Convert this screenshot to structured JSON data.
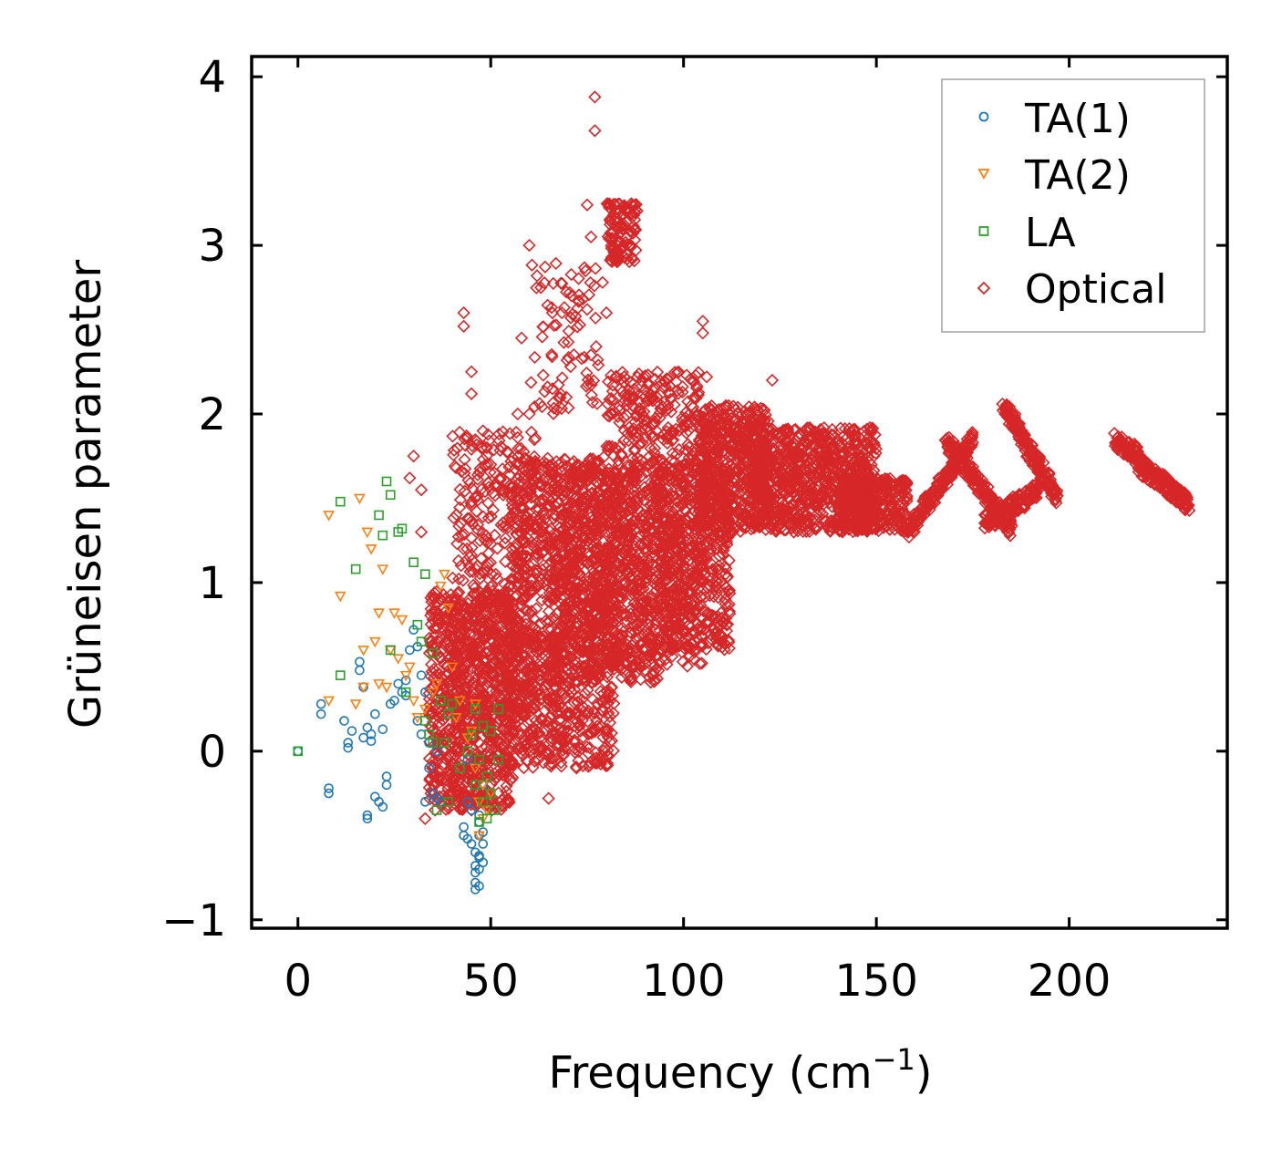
{
  "chart_data": {
    "type": "scatter",
    "title": "",
    "xlabel": "Frequency (cm",
    "xlabel_sup": "−1",
    "xlabel_close": ")",
    "ylabel": "Grüneisen parameter",
    "xlim": [
      -12,
      241
    ],
    "ylim": [
      -1.05,
      4.12
    ],
    "xticks": [
      0,
      50,
      100,
      150,
      200
    ],
    "xtick_labels": [
      "0",
      "50",
      "100",
      "150",
      "200"
    ],
    "yticks": [
      -1,
      0,
      1,
      2,
      3,
      4
    ],
    "ytick_labels": [
      "−1",
      "0",
      "1",
      "2",
      "3",
      "4"
    ],
    "grid": false,
    "legend_position": "top-right",
    "series": [
      {
        "name": "TA(1)",
        "marker": "circle",
        "color": "#1f77b4",
        "x": [
          0,
          6,
          6,
          8,
          8,
          12,
          13,
          13,
          14,
          16,
          16,
          17,
          17,
          18,
          18,
          18,
          19,
          19,
          20,
          20,
          21,
          22,
          22,
          23,
          23,
          24,
          25,
          26,
          27,
          28,
          28,
          29,
          30,
          31,
          31,
          32,
          32,
          33,
          33,
          34,
          34,
          35,
          36,
          36,
          37,
          43,
          43,
          44,
          44,
          44,
          45,
          45,
          46,
          46,
          46,
          46,
          46,
          47,
          47,
          47,
          47,
          47,
          47,
          47,
          48,
          48,
          48,
          48
        ],
        "y": [
          0.0,
          0.22,
          0.28,
          -0.22,
          -0.25,
          0.18,
          0.02,
          0.05,
          0.12,
          0.48,
          0.53,
          0.38,
          0.08,
          0.14,
          -0.38,
          -0.4,
          0.1,
          0.06,
          0.22,
          -0.27,
          -0.3,
          0.13,
          -0.33,
          -0.15,
          -0.2,
          0.28,
          0.3,
          0.4,
          0.35,
          0.33,
          0.42,
          0.6,
          0.72,
          0.62,
          0.18,
          0.1,
          0.45,
          0.35,
          -0.3,
          0.05,
          -0.1,
          -0.25,
          -0.28,
          0.0,
          -0.3,
          -0.45,
          -0.5,
          -0.05,
          -0.3,
          -0.52,
          -0.35,
          -0.55,
          -0.6,
          -0.68,
          -0.72,
          -0.78,
          -0.82,
          -0.42,
          -0.5,
          -0.62,
          -0.7,
          -0.8,
          -0.63,
          -0.38,
          -0.48,
          -0.55,
          -0.2,
          -0.66
        ]
      },
      {
        "name": "TA(2)",
        "marker": "triangle-down",
        "color": "#ff7f0e",
        "x": [
          8,
          8,
          11,
          15,
          16,
          17,
          17,
          18,
          19,
          20,
          21,
          21,
          22,
          23,
          24,
          25,
          26,
          27,
          28,
          29,
          30,
          31,
          33,
          35,
          36,
          37,
          38,
          39,
          40,
          41,
          42,
          44,
          45,
          46,
          46,
          47,
          47,
          48,
          48,
          49,
          50
        ],
        "y": [
          1.4,
          0.3,
          0.92,
          0.28,
          1.5,
          0.6,
          0.38,
          1.3,
          1.2,
          0.65,
          0.4,
          0.82,
          1.08,
          0.38,
          0.6,
          0.82,
          0.55,
          0.78,
          0.45,
          0.5,
          0.3,
          0.2,
          0.25,
          0.35,
          0.4,
          0.98,
          1.05,
          0.85,
          0.5,
          0.2,
          0.3,
          0.08,
          0.12,
          0.28,
          -0.1,
          -0.3,
          -0.5,
          -0.2,
          -0.4,
          -0.35,
          -0.25
        ]
      },
      {
        "name": "LA",
        "marker": "square",
        "color": "#2ca02c",
        "x": [
          0,
          11,
          11,
          15,
          21,
          22,
          23,
          24,
          24,
          26,
          27,
          28,
          30,
          31,
          32,
          33,
          33,
          34,
          35,
          35,
          36,
          37,
          38,
          39,
          39,
          40,
          42,
          44,
          45,
          46,
          46,
          47,
          47,
          48,
          48,
          49,
          49,
          50,
          50,
          51,
          52,
          52
        ],
        "y": [
          0.0,
          1.48,
          0.45,
          1.08,
          1.4,
          1.28,
          1.6,
          1.52,
          0.6,
          1.3,
          1.32,
          0.35,
          1.12,
          0.75,
          0.65,
          1.05,
          0.18,
          0.1,
          0.05,
          0.58,
          -0.35,
          0.3,
          0.05,
          0.22,
          -0.3,
          0.28,
          -0.1,
          0.0,
          0.1,
          -0.2,
          0.25,
          -0.05,
          -0.42,
          0.15,
          -0.3,
          -0.4,
          -0.15,
          0.12,
          -0.25,
          -0.35,
          0.25,
          -0.05
        ]
      },
      {
        "name": "Optical",
        "marker": "diamond",
        "color": "#d62728"
      }
    ],
    "optical_clusters": [
      {
        "x": [
          34,
          56
        ],
        "y": [
          -0.35,
          0.95
        ],
        "n": 900
      },
      {
        "x": [
          40,
          62
        ],
        "y": [
          0.1,
          1.9
        ],
        "n": 420
      },
      {
        "x": [
          55,
          82
        ],
        "y": [
          -0.1,
          1.75
        ],
        "n": 900
      },
      {
        "x": [
          65,
          95
        ],
        "y": [
          0.4,
          1.7
        ],
        "n": 750
      },
      {
        "x": [
          80,
          105
        ],
        "y": [
          0.5,
          2.25
        ],
        "n": 750
      },
      {
        "x": [
          95,
          112
        ],
        "y": [
          0.6,
          1.7
        ],
        "n": 450
      },
      {
        "x": [
          104,
          122
        ],
        "y": [
          1.3,
          2.05
        ],
        "n": 550
      },
      {
        "x": [
          118,
          150
        ],
        "y": [
          1.3,
          1.92
        ],
        "n": 800
      },
      {
        "x": [
          140,
          158
        ],
        "y": [
          1.3,
          1.62
        ],
        "n": 350
      },
      {
        "x": [
          80,
          88
        ],
        "y": [
          2.9,
          3.25
        ],
        "n": 110
      },
      {
        "x": [
          60,
          78
        ],
        "y": [
          2.0,
          2.9
        ],
        "n": 80
      },
      {
        "x": [
          55,
          70
        ],
        "y": [
          0.0,
          0.7
        ],
        "n": 140
      }
    ],
    "optical_strands": [
      {
        "x": [
          158,
          175
        ],
        "y": [
          1.3,
          1.85
        ],
        "n": 180
      },
      {
        "x": [
          168,
          185
        ],
        "y": [
          1.85,
          1.32
        ],
        "n": 180
      },
      {
        "x": [
          178,
          192
        ],
        "y": [
          1.35,
          1.55
        ],
        "n": 120
      },
      {
        "x": [
          183,
          197
        ],
        "y": [
          2.05,
          1.5
        ],
        "n": 180
      },
      {
        "x": [
          212,
          218
        ],
        "y": [
          1.85,
          1.75
        ],
        "n": 60
      },
      {
        "x": [
          217,
          231
        ],
        "y": [
          1.72,
          1.47
        ],
        "n": 160
      }
    ],
    "optical_outliers": {
      "x": [
        77,
        77,
        75,
        76,
        60,
        62,
        63,
        66,
        58,
        43,
        43,
        45,
        45,
        30,
        32,
        29,
        60,
        33,
        49,
        66,
        65,
        71,
        72,
        123,
        105,
        105,
        48,
        50,
        66,
        75,
        76,
        79,
        80,
        32,
        36,
        44,
        52,
        57,
        80,
        84,
        90,
        106,
        37
      ],
      "y": [
        3.88,
        3.68,
        3.24,
        3.05,
        3.0,
        2.82,
        2.75,
        2.6,
        2.45,
        2.6,
        2.52,
        2.25,
        2.12,
        1.75,
        1.55,
        1.62,
        2.0,
        -0.4,
        1.8,
        1.7,
        -0.28,
        2.7,
        2.58,
        2.2,
        2.55,
        2.48,
        1.9,
        1.7,
        2.15,
        2.62,
        2.35,
        2.78,
        2.6,
        1.3,
        0.78,
        1.38,
        0.9,
        2.0,
        0.12,
        0.6,
        0.48,
        2.22,
        0.55
      ]
    }
  }
}
